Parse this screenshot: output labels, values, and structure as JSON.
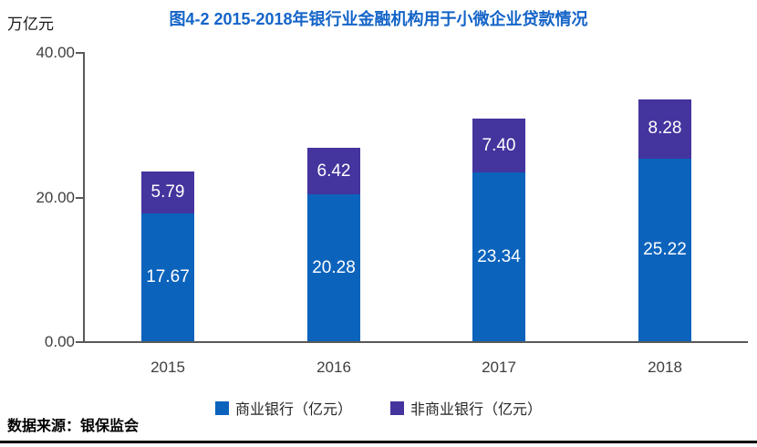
{
  "theme": {
    "title_color": "#1464C8",
    "axis_color": "#595959",
    "tick_text_color": "#3F3F3F",
    "bar_label_color": "#FFFFFF",
    "bottom_rule_color": "#000000"
  },
  "footer": {
    "source_label": "数据来源：银保监会"
  },
  "chart_data": {
    "type": "bar",
    "stacked": true,
    "title": "图4-2 2015-2018年银行业金融机构用于小微企业贷款情况",
    "unit_label": "万亿元",
    "categories": [
      "2015",
      "2016",
      "2017",
      "2018"
    ],
    "series": [
      {
        "name": "商业银行（亿元）",
        "color": "#0B63BC",
        "values": [
          17.67,
          20.28,
          23.34,
          25.22
        ]
      },
      {
        "name": "非商业银行（亿元）",
        "color": "#44349E",
        "values": [
          5.79,
          6.42,
          7.4,
          8.28
        ]
      }
    ],
    "totals": [
      23.46,
      26.7,
      30.74,
      33.5
    ],
    "ylim": [
      0,
      40
    ],
    "yticks": [
      {
        "value": 0,
        "label": "0.00"
      },
      {
        "value": 20,
        "label": "20.00"
      },
      {
        "value": 40,
        "label": "40.00"
      }
    ],
    "grid": false,
    "legend_position": "bottom",
    "value_label_decimals": 2
  }
}
